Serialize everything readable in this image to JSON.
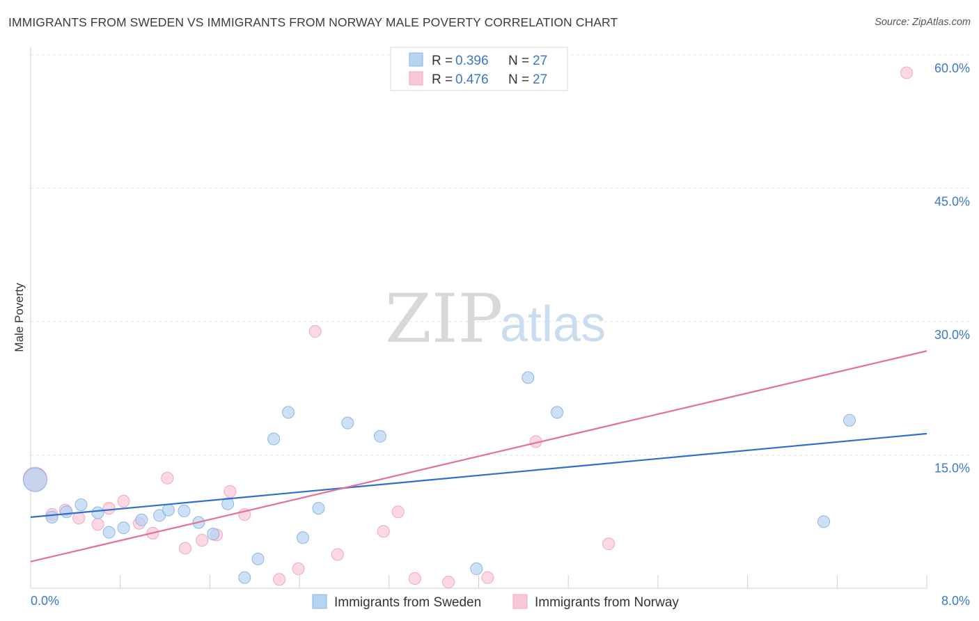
{
  "title": "IMMIGRANTS FROM SWEDEN VS IMMIGRANTS FROM NORWAY MALE POVERTY CORRELATION CHART",
  "source": "Source: ZipAtlas.com",
  "watermark": {
    "zip": "ZIP",
    "atlas": "atlas"
  },
  "colors": {
    "sweden_fill": "#b7d3f2",
    "sweden_stroke": "#8db6e6",
    "sweden_line": "#2f6fce",
    "norway_fill": "#f9c8d7",
    "norway_stroke": "#f1a7be",
    "norway_line": "#e46f97",
    "grid": "#e3e3e3",
    "axis": "#d0d0d0",
    "tick_text": "#3a78c9"
  },
  "legend": {
    "rows": [
      {
        "r_label": "R = ",
        "r_value": "0.396",
        "n_label": "N = ",
        "n_value": "27"
      },
      {
        "r_label": "R = ",
        "r_value": "0.476",
        "n_label": "N = ",
        "n_value": "27"
      }
    ]
  },
  "chart_data": {
    "type": "scatter",
    "title": "IMMIGRANTS FROM SWEDEN VS IMMIGRANTS FROM NORWAY MALE POVERTY CORRELATION CHART",
    "xlabel": "",
    "ylabel": "Male Poverty",
    "xlim": [
      0,
      8
    ],
    "ylim": [
      0,
      60
    ],
    "x_tick_labels": [
      "0.0%",
      "8.0%"
    ],
    "y_ticks": [
      15,
      30,
      45,
      60
    ],
    "y_tick_labels": [
      "15.0%",
      "30.0%",
      "45.0%",
      "60.0%"
    ],
    "grid": true,
    "series": [
      {
        "name": "Immigrants from Sweden",
        "r": 0.396,
        "n": 27,
        "trend": {
          "x": [
            0,
            8
          ],
          "y": [
            8.0,
            17.4
          ]
        },
        "points": [
          {
            "x": 0.04,
            "y": 12.2,
            "big": true
          },
          {
            "x": 0.19,
            "y": 8.0
          },
          {
            "x": 0.32,
            "y": 8.6
          },
          {
            "x": 0.45,
            "y": 9.4
          },
          {
            "x": 0.6,
            "y": 8.5
          },
          {
            "x": 0.7,
            "y": 6.3
          },
          {
            "x": 0.83,
            "y": 6.8
          },
          {
            "x": 0.99,
            "y": 7.7
          },
          {
            "x": 1.15,
            "y": 8.2
          },
          {
            "x": 1.23,
            "y": 8.8
          },
          {
            "x": 1.37,
            "y": 8.7
          },
          {
            "x": 1.5,
            "y": 7.4
          },
          {
            "x": 1.63,
            "y": 6.1
          },
          {
            "x": 1.76,
            "y": 9.5
          },
          {
            "x": 1.91,
            "y": 1.2
          },
          {
            "x": 2.03,
            "y": 3.3
          },
          {
            "x": 2.17,
            "y": 16.8
          },
          {
            "x": 2.3,
            "y": 19.8
          },
          {
            "x": 2.43,
            "y": 5.7
          },
          {
            "x": 2.57,
            "y": 9.0
          },
          {
            "x": 2.83,
            "y": 18.6
          },
          {
            "x": 3.12,
            "y": 17.1
          },
          {
            "x": 3.98,
            "y": 2.2
          },
          {
            "x": 4.44,
            "y": 23.7
          },
          {
            "x": 4.7,
            "y": 19.8
          },
          {
            "x": 7.08,
            "y": 7.5
          },
          {
            "x": 7.31,
            "y": 18.9
          }
        ]
      },
      {
        "name": "Immigrants from Norway",
        "r": 0.476,
        "n": 27,
        "trend": {
          "x": [
            0,
            8
          ],
          "y": [
            3.0,
            26.7
          ]
        },
        "points": [
          {
            "x": 0.04,
            "y": 12.3,
            "big": true
          },
          {
            "x": 0.19,
            "y": 8.3
          },
          {
            "x": 0.31,
            "y": 8.8
          },
          {
            "x": 0.43,
            "y": 7.9
          },
          {
            "x": 0.6,
            "y": 7.2
          },
          {
            "x": 0.7,
            "y": 9.0
          },
          {
            "x": 0.83,
            "y": 9.8
          },
          {
            "x": 0.97,
            "y": 7.3
          },
          {
            "x": 1.09,
            "y": 6.2
          },
          {
            "x": 1.22,
            "y": 12.4
          },
          {
            "x": 1.38,
            "y": 4.5
          },
          {
            "x": 1.53,
            "y": 5.4
          },
          {
            "x": 1.66,
            "y": 6.0
          },
          {
            "x": 1.78,
            "y": 10.9
          },
          {
            "x": 1.91,
            "y": 8.3
          },
          {
            "x": 2.22,
            "y": 1.0
          },
          {
            "x": 2.39,
            "y": 2.2
          },
          {
            "x": 2.54,
            "y": 28.9
          },
          {
            "x": 2.74,
            "y": 3.8
          },
          {
            "x": 3.15,
            "y": 6.4
          },
          {
            "x": 3.28,
            "y": 8.6
          },
          {
            "x": 3.43,
            "y": 1.1
          },
          {
            "x": 3.73,
            "y": 0.7
          },
          {
            "x": 4.08,
            "y": 1.2
          },
          {
            "x": 4.51,
            "y": 16.5
          },
          {
            "x": 5.16,
            "y": 5.0
          },
          {
            "x": 7.82,
            "y": 58.0
          }
        ]
      }
    ]
  }
}
